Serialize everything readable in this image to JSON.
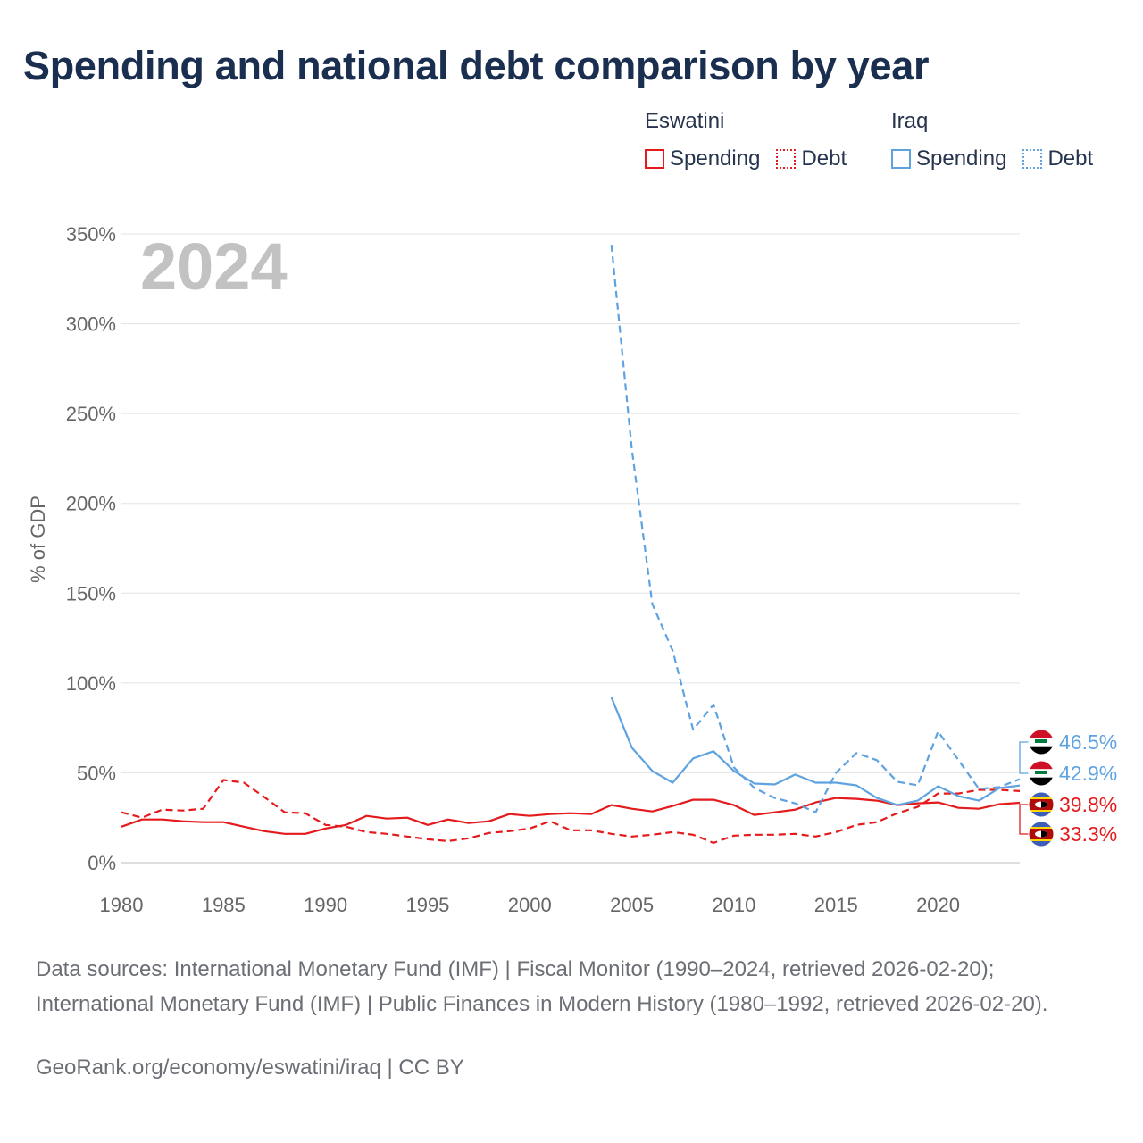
{
  "title": "Spending and national debt comparison by year",
  "colors": {
    "eswatini": "#e41a1c",
    "iraq": "#5ea3e0",
    "grid": "#e3e3e3",
    "tick": "#666666",
    "year": "#c2c2c2"
  },
  "legend": {
    "groups": [
      {
        "country": "Eswatini",
        "items": [
          {
            "label": "Spending",
            "style": "solid-red"
          },
          {
            "label": "Debt",
            "style": "dot-red"
          }
        ]
      },
      {
        "country": "Iraq",
        "items": [
          {
            "label": "Spending",
            "style": "solid-blue"
          },
          {
            "label": "Debt",
            "style": "dot-blue"
          }
        ]
      }
    ]
  },
  "footer": {
    "sources": "Data sources: International Monetary Fund (IMF) | Fiscal Monitor (1990–2024, retrieved 2026-02-20); International Monetary Fund (IMF) | Public Finances in Modern History (1980–1992, retrieved 2026-02-20).",
    "attribution": "GeoRank.org/economy/eswatini/iraq | CC BY"
  },
  "chart_data": {
    "type": "line",
    "title": "Spending and national debt comparison by year",
    "ylabel": "% of GDP",
    "xlabel": "",
    "year_label": "2024",
    "xlim": [
      1980,
      2024
    ],
    "ylim": [
      0,
      350
    ],
    "x_ticks": [
      1980,
      1985,
      1990,
      1995,
      2000,
      2005,
      2010,
      2015,
      2020
    ],
    "y_ticks": [
      0,
      50,
      100,
      150,
      200,
      250,
      300,
      350
    ],
    "y_tick_labels": [
      "0%",
      "50%",
      "100%",
      "150%",
      "200%",
      "250%",
      "300%",
      "350%"
    ],
    "grid": true,
    "series": [
      {
        "name": "Eswatini Spending",
        "country": "Eswatini",
        "dash": "solid",
        "color": "#e41a1c",
        "x": [
          1980,
          1981,
          1982,
          1983,
          1984,
          1985,
          1986,
          1987,
          1988,
          1989,
          1990,
          1991,
          1992,
          1993,
          1994,
          1995,
          1996,
          1997,
          1998,
          1999,
          2000,
          2001,
          2002,
          2003,
          2004,
          2005,
          2006,
          2007,
          2008,
          2009,
          2010,
          2011,
          2012,
          2013,
          2014,
          2015,
          2016,
          2017,
          2018,
          2019,
          2020,
          2021,
          2022,
          2023,
          2024
        ],
        "values": [
          20,
          24,
          24,
          23,
          22.5,
          22.5,
          20,
          17.5,
          16,
          16,
          19,
          21,
          26,
          24.5,
          25,
          21,
          24,
          22,
          23,
          27,
          26,
          27,
          27.5,
          27,
          32,
          30,
          28.5,
          31.5,
          35,
          35,
          32,
          26.5,
          28,
          29.5,
          33.5,
          36,
          35.5,
          34.5,
          32,
          33,
          33.5,
          30.5,
          30,
          32.5,
          33.3
        ]
      },
      {
        "name": "Eswatini Debt",
        "country": "Eswatini",
        "dash": "dashed",
        "color": "#e41a1c",
        "x": [
          1980,
          1981,
          1982,
          1983,
          1984,
          1985,
          1986,
          1987,
          1988,
          1989,
          1990,
          1991,
          1992,
          1993,
          1994,
          1995,
          1996,
          1997,
          1998,
          1999,
          2000,
          2001,
          2002,
          2003,
          2004,
          2005,
          2006,
          2007,
          2008,
          2009,
          2010,
          2011,
          2012,
          2013,
          2014,
          2015,
          2016,
          2017,
          2018,
          2019,
          2020,
          2021,
          2022,
          2023,
          2024
        ],
        "values": [
          28,
          25,
          29.5,
          29,
          30,
          46,
          44.5,
          36.5,
          28,
          27.5,
          21,
          20,
          17,
          16,
          14.5,
          13,
          12,
          13.5,
          16.5,
          17.5,
          19,
          23,
          18,
          18,
          16,
          14.5,
          15.5,
          17,
          15.5,
          11,
          15,
          15.5,
          15.5,
          16,
          14.5,
          17,
          21,
          22.5,
          27.5,
          31,
          38.5,
          38.5,
          40.5,
          40.5,
          39.8
        ]
      },
      {
        "name": "Iraq Spending",
        "country": "Iraq",
        "dash": "solid",
        "color": "#5ea3e0",
        "x": [
          2004,
          2005,
          2006,
          2007,
          2008,
          2009,
          2010,
          2011,
          2012,
          2013,
          2014,
          2015,
          2016,
          2017,
          2018,
          2019,
          2020,
          2021,
          2022,
          2023,
          2024
        ],
        "values": [
          92,
          64,
          51,
          44.5,
          58,
          62,
          51,
          44,
          43.5,
          49,
          44.5,
          44.5,
          43,
          36,
          32,
          34.5,
          42.5,
          37,
          34.5,
          41.5,
          42.9
        ]
      },
      {
        "name": "Iraq Debt",
        "country": "Iraq",
        "dash": "dashed",
        "color": "#5ea3e0",
        "x": [
          2004,
          2005,
          2006,
          2007,
          2008,
          2009,
          2010,
          2011,
          2012,
          2013,
          2014,
          2015,
          2016,
          2017,
          2018,
          2019,
          2020,
          2021,
          2022,
          2023,
          2024
        ],
        "values": [
          344,
          230,
          144,
          118,
          74,
          88,
          53,
          41.5,
          36,
          33,
          28,
          50,
          61,
          57,
          45,
          43,
          73,
          57,
          41,
          42,
          46.5
        ]
      }
    ],
    "end_labels": [
      {
        "country": "Iraq",
        "label": "46.5%",
        "value": 46.5,
        "color": "#5ea3e0"
      },
      {
        "country": "Iraq",
        "label": "42.9%",
        "value": 42.9,
        "color": "#5ea3e0"
      },
      {
        "country": "Eswatini",
        "label": "39.8%",
        "value": 39.8,
        "color": "#e41a1c"
      },
      {
        "country": "Eswatini",
        "label": "33.3%",
        "value": 33.3,
        "color": "#e41a1c"
      }
    ]
  }
}
